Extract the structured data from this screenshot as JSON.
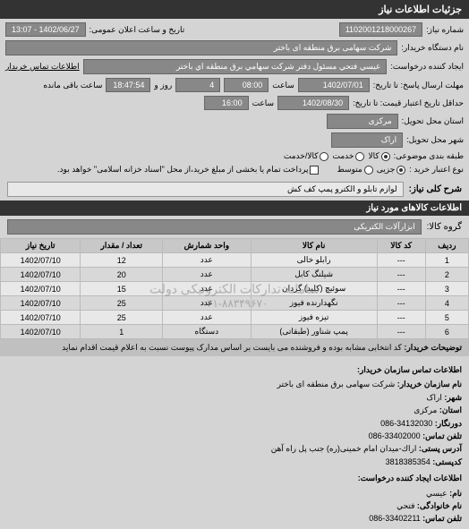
{
  "header": {
    "title": "جزئیات اطلاعات نیاز"
  },
  "form": {
    "req_no_label": "شماره نیاز:",
    "req_no": "1102001218000267",
    "announce_label": "تاریخ و ساعت اعلان عمومی:",
    "announce": "1402/06/27 - 13:07",
    "buyer_label": "نام دستگاه خریدار:",
    "buyer": "شرکت سهامی برق منطقه ای باختر",
    "creator_label": "ایجاد کننده درخواست:",
    "creator": "عيسي فتحي مسئول دفتر شركت سهامي برق منطقه اي باختر",
    "contact_info_label": "اطلاعات تماس خریدار",
    "send_deadline_label": "مهلت ارسال پاسخ: تا تاریخ:",
    "send_deadline_date": "1402/07/01",
    "time_label": "ساعت",
    "send_deadline_time": "08:00",
    "remain_days": "4",
    "days_label": "روز و",
    "remain_time": "18:47:54",
    "remain_label": "ساعت باقی مانده",
    "validity_label": "حداقل تاریخ اعتبار قیمت: تا تاریخ:",
    "validity_date": "1402/08/30",
    "validity_time": "16:00",
    "province_label": "استان محل تحویل:",
    "province": "مرکزی",
    "city_label": "شهر محل تحویل:",
    "city": "اراک",
    "cat_label": "طبقه بندی موضوعی:",
    "cat_goods": "کالا",
    "cat_service": "خدمت",
    "cat_goods_service": "کالا/خدمت",
    "trans_label": "نوع اعتبار خرید :",
    "trans_small": "جزیی",
    "trans_medium": "متوسط",
    "pay_note": "پرداخت تمام یا بخشی از مبلغ خرید،از محل \"اسناد خزانه اسلامی\" خواهد بود.",
    "main_desc_label": "شرح کلی نیاز:",
    "main_desc": "لوازم تابلو و الکترو پمپ کف کش",
    "items_title": "اطلاعات کالاهای مورد نیاز",
    "group_label": "گروه کالا:",
    "group": "ابزارآلات الکتریکی"
  },
  "table": {
    "headers": [
      "ردیف",
      "کد کالا",
      "نام کالا",
      "واحد شمارش",
      "تعداد / مقدار",
      "تاریخ نیاز"
    ],
    "rows": [
      [
        "1",
        "---",
        "رابلو خالی",
        "عدد",
        "12",
        "1402/07/10"
      ],
      [
        "2",
        "---",
        "شیلنگ کابل",
        "عدد",
        "20",
        "1402/07/10"
      ],
      [
        "3",
        "---",
        "سوئیچ (کلید) گردان",
        "عدد",
        "15",
        "1402/07/10"
      ],
      [
        "4",
        "---",
        "نگهدارنده فیوز",
        "عدد",
        "25",
        "1402/07/10"
      ],
      [
        "5",
        "---",
        "تیزه فیوز",
        "عدد",
        "25",
        "1402/07/10"
      ],
      [
        "6",
        "---",
        "پمپ شناور (طبقاتی)",
        "دستگاه",
        "1",
        "1402/07/10"
      ]
    ],
    "watermark1": "سامانه تدارکات الکترونیکی دولت",
    "watermark2": "۰۲۱-۸۸۳۴۹۶۷۰"
  },
  "buyer_note": {
    "label": "توضیحات خریدار:",
    "text": "کد انتخابی مشابه بوده و فروشنده می بایست بر اساس مدارک پیوست نسبت به اعلام قیمت اقدام نماید"
  },
  "contact": {
    "org_header": "اطلاعات تماس سازمان خریدار:",
    "org_name_label": "نام سازمان خریدار:",
    "org_name": "شرکت سهامی برق منطقه ای باختر",
    "city_label": "شهر:",
    "city": "اراک",
    "province_label": "استان:",
    "province": "مرکزی",
    "phone_label": "دورنگار:",
    "phone": "34132030-086",
    "fax_label": "تلفن تماس:",
    "fax": "33402000-086",
    "address_label": "آدرس پستی:",
    "address": "اراك-میدان امام خمینی(ره) جنب پل راه آهن",
    "postal_label": "کدپستی:",
    "postal": "3818385354",
    "creator_header": "اطلاعات ایجاد کننده درخواست:",
    "name_label": "نام:",
    "name": "عيسي",
    "lname_label": "نام خانوادگی:",
    "lname": "فتحي",
    "cphone_label": "تلفن تماس:",
    "cphone": "33402211-086"
  }
}
